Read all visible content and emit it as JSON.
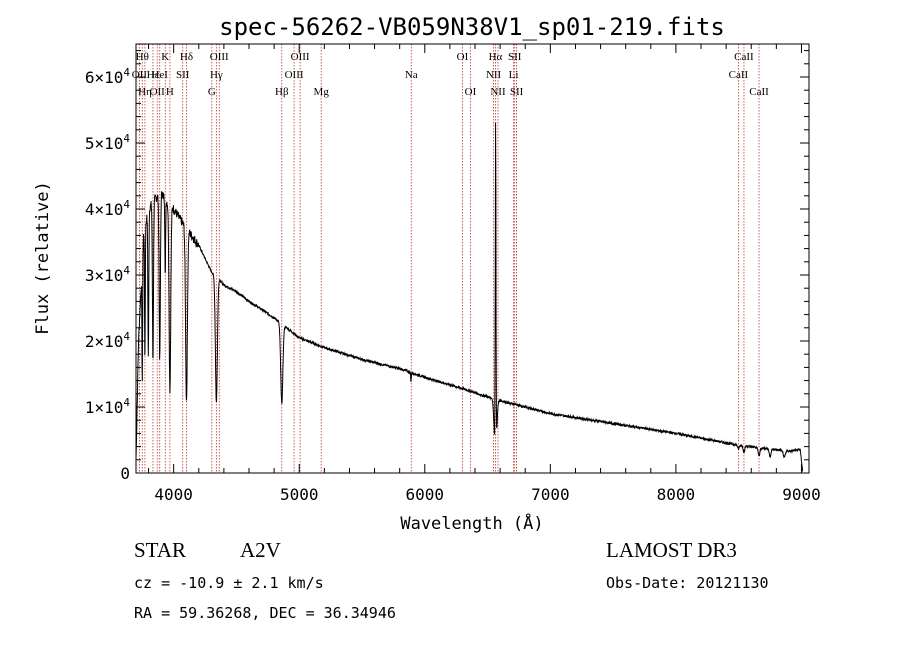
{
  "chart_data": {
    "type": "line",
    "title": "spec-56262-VB059N38V1_sp01-219.fits",
    "xlabel": "Wavelength (Å)",
    "ylabel": "Flux (relative)",
    "xlim": [
      3700,
      9060
    ],
    "ylim": [
      0,
      65000
    ],
    "x_ticks": [
      4000,
      5000,
      6000,
      7000,
      8000,
      9000
    ],
    "x_tick_labels": [
      "4000",
      "5000",
      "6000",
      "7000",
      "8000",
      "9000"
    ],
    "y_ticks": [
      0,
      10000,
      20000,
      30000,
      40000,
      50000,
      60000
    ],
    "y_tick_labels": [
      {
        "mant": "0",
        "exp": ""
      },
      {
        "mant": "1×10",
        "exp": "4"
      },
      {
        "mant": "2×10",
        "exp": "4"
      },
      {
        "mant": "3×10",
        "exp": "4"
      },
      {
        "mant": "4×10",
        "exp": "4"
      },
      {
        "mant": "5×10",
        "exp": "4"
      },
      {
        "mant": "6×10",
        "exp": "4"
      }
    ],
    "series": [
      {
        "name": "spectrum",
        "continuum_knots": [
          [
            3700,
            2000
          ],
          [
            3720,
            20000
          ],
          [
            3760,
            36000
          ],
          [
            3800,
            40000
          ],
          [
            3850,
            41500
          ],
          [
            3900,
            42500
          ],
          [
            3950,
            41000
          ],
          [
            4000,
            40000
          ],
          [
            4050,
            38500
          ],
          [
            4100,
            37000
          ],
          [
            4150,
            35800
          ],
          [
            4200,
            34500
          ],
          [
            4250,
            32500
          ],
          [
            4300,
            30500
          ],
          [
            4400,
            28500
          ],
          [
            4500,
            27500
          ],
          [
            4600,
            26000
          ],
          [
            4700,
            24800
          ],
          [
            4800,
            23500
          ],
          [
            4900,
            22000
          ],
          [
            5000,
            20500
          ],
          [
            5200,
            19000
          ],
          [
            5500,
            17200
          ],
          [
            5800,
            15800
          ],
          [
            6000,
            14500
          ],
          [
            6300,
            12800
          ],
          [
            6550,
            11200
          ],
          [
            6800,
            10000
          ],
          [
            7000,
            9000
          ],
          [
            7500,
            7500
          ],
          [
            8000,
            6000
          ],
          [
            8500,
            4200
          ],
          [
            8900,
            3300
          ],
          [
            8990,
            3500
          ],
          [
            9010,
            200
          ]
        ],
        "absorption_lines": [
          {
            "center": 3750,
            "depth": 18000,
            "width": 4
          },
          {
            "center": 3771,
            "depth": 20000,
            "width": 4
          },
          {
            "center": 3798,
            "depth": 22000,
            "width": 5
          },
          {
            "center": 3835,
            "depth": 24000,
            "width": 6
          },
          {
            "center": 3889,
            "depth": 25000,
            "width": 7
          },
          {
            "center": 3933,
            "depth": 12000,
            "width": 4
          },
          {
            "center": 3970,
            "depth": 28000,
            "width": 9
          },
          {
            "center": 4102,
            "depth": 26000,
            "width": 10
          },
          {
            "center": 4340,
            "depth": 19000,
            "width": 11
          },
          {
            "center": 4861,
            "depth": 12000,
            "width": 12
          },
          {
            "center": 5890,
            "depth": 1500,
            "width": 3
          },
          {
            "center": 6563,
            "depth": 8000,
            "width": 14
          },
          {
            "center": 8498,
            "depth": 600,
            "width": 8
          },
          {
            "center": 8542,
            "depth": 900,
            "width": 9
          },
          {
            "center": 8662,
            "depth": 1200,
            "width": 10
          },
          {
            "center": 8750,
            "depth": 1100,
            "width": 10
          },
          {
            "center": 8863,
            "depth": 1000,
            "width": 11
          }
        ],
        "emission_lines": [
          {
            "center": 6564,
            "height": 50000,
            "width": 4
          }
        ]
      }
    ],
    "line_markers": [
      {
        "wavelength": 3727,
        "label": "OII",
        "row": 1
      },
      {
        "wavelength": 3750,
        "label": "Hθ",
        "row": 0
      },
      {
        "wavelength": 3771,
        "label": "Hη",
        "row": 2
      },
      {
        "wavelength": 3835,
        "label": "Hε",
        "row": 1
      },
      {
        "wavelength": 3869,
        "label": "OII",
        "row": 2
      },
      {
        "wavelength": 3889,
        "label": "HeI",
        "row": 1
      },
      {
        "wavelength": 3933,
        "label": "K",
        "row": 0
      },
      {
        "wavelength": 3970,
        "label": "H",
        "row": 2
      },
      {
        "wavelength": 4072,
        "label": "SII",
        "row": 1
      },
      {
        "wavelength": 4102,
        "label": "Hδ",
        "row": 0
      },
      {
        "wavelength": 4304,
        "label": "G",
        "row": 2
      },
      {
        "wavelength": 4340,
        "label": "Hγ",
        "row": 1
      },
      {
        "wavelength": 4363,
        "label": "OIII",
        "row": 0
      },
      {
        "wavelength": 4861,
        "label": "Hβ",
        "row": 2
      },
      {
        "wavelength": 4959,
        "label": "OIII",
        "row": 1
      },
      {
        "wavelength": 5007,
        "label": "OIII",
        "row": 0
      },
      {
        "wavelength": 5175,
        "label": "Mg",
        "row": 2
      },
      {
        "wavelength": 5892,
        "label": "Na",
        "row": 1
      },
      {
        "wavelength": 6300,
        "label": "OI",
        "row": 0
      },
      {
        "wavelength": 6364,
        "label": "OI",
        "row": 2
      },
      {
        "wavelength": 6548,
        "label": "NII",
        "row": 1
      },
      {
        "wavelength": 6563,
        "label": "Hα",
        "row": 0
      },
      {
        "wavelength": 6583,
        "label": "NII",
        "row": 2
      },
      {
        "wavelength": 6707,
        "label": "Li",
        "row": 1
      },
      {
        "wavelength": 6716,
        "label": "SII",
        "row": 0
      },
      {
        "wavelength": 6731,
        "label": "SII",
        "row": 2
      },
      {
        "wavelength": 8498,
        "label": "CaII",
        "row": 1
      },
      {
        "wavelength": 8542,
        "label": "CaII",
        "row": 0
      },
      {
        "wavelength": 8662,
        "label": "CaII",
        "row": 2
      }
    ],
    "colors": {
      "spectrum": "#000000",
      "marker": "#c0392b",
      "axis": "#000000"
    }
  },
  "info": {
    "object_class": "STAR",
    "subclass": "A2V",
    "survey": "LAMOST DR3",
    "redshift": "cz = -10.9 ± 2.1 km/s",
    "obs_date": "Obs-Date: 20121130",
    "coords": "RA =  59.36268, DEC =  36.34946"
  }
}
